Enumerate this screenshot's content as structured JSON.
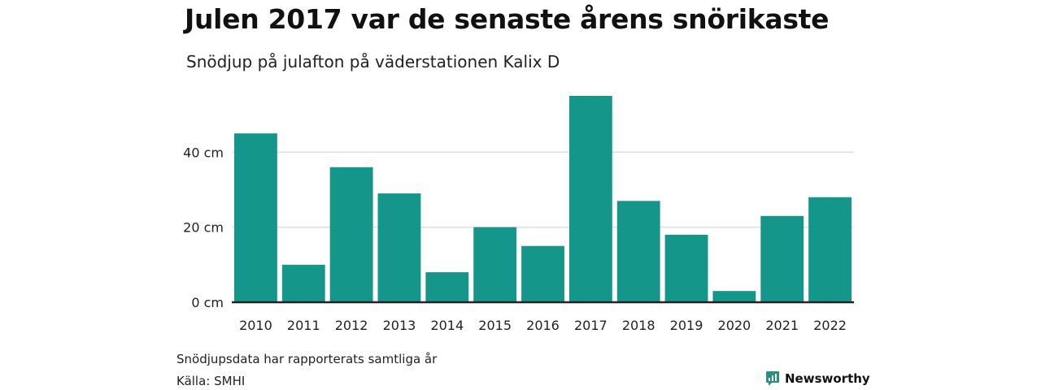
{
  "title": "Julen 2017 var de senaste årens snörikaste",
  "subtitle": "Snödjup på julafton på väderstationen Kalix D",
  "note": "Snödjupsdata har rapporterats samtliga år",
  "source": "Källa: SMHI",
  "brand": {
    "label": "Newsworthy",
    "icon": "newsworthy-logo-icon",
    "color": "#2a8f7f"
  },
  "chart_data": {
    "type": "bar",
    "categories": [
      "2010",
      "2011",
      "2012",
      "2013",
      "2014",
      "2015",
      "2016",
      "2017",
      "2018",
      "2019",
      "2020",
      "2021",
      "2022"
    ],
    "values": [
      45,
      10,
      36,
      29,
      8,
      20,
      15,
      55,
      27,
      18,
      3,
      23,
      28
    ],
    "ylim": [
      0,
      55
    ],
    "yticks": [
      0,
      20,
      40
    ],
    "ytick_labels": [
      "0 cm",
      "20 cm",
      "40 cm"
    ],
    "grid": true,
    "bar_color": "#14968a"
  }
}
